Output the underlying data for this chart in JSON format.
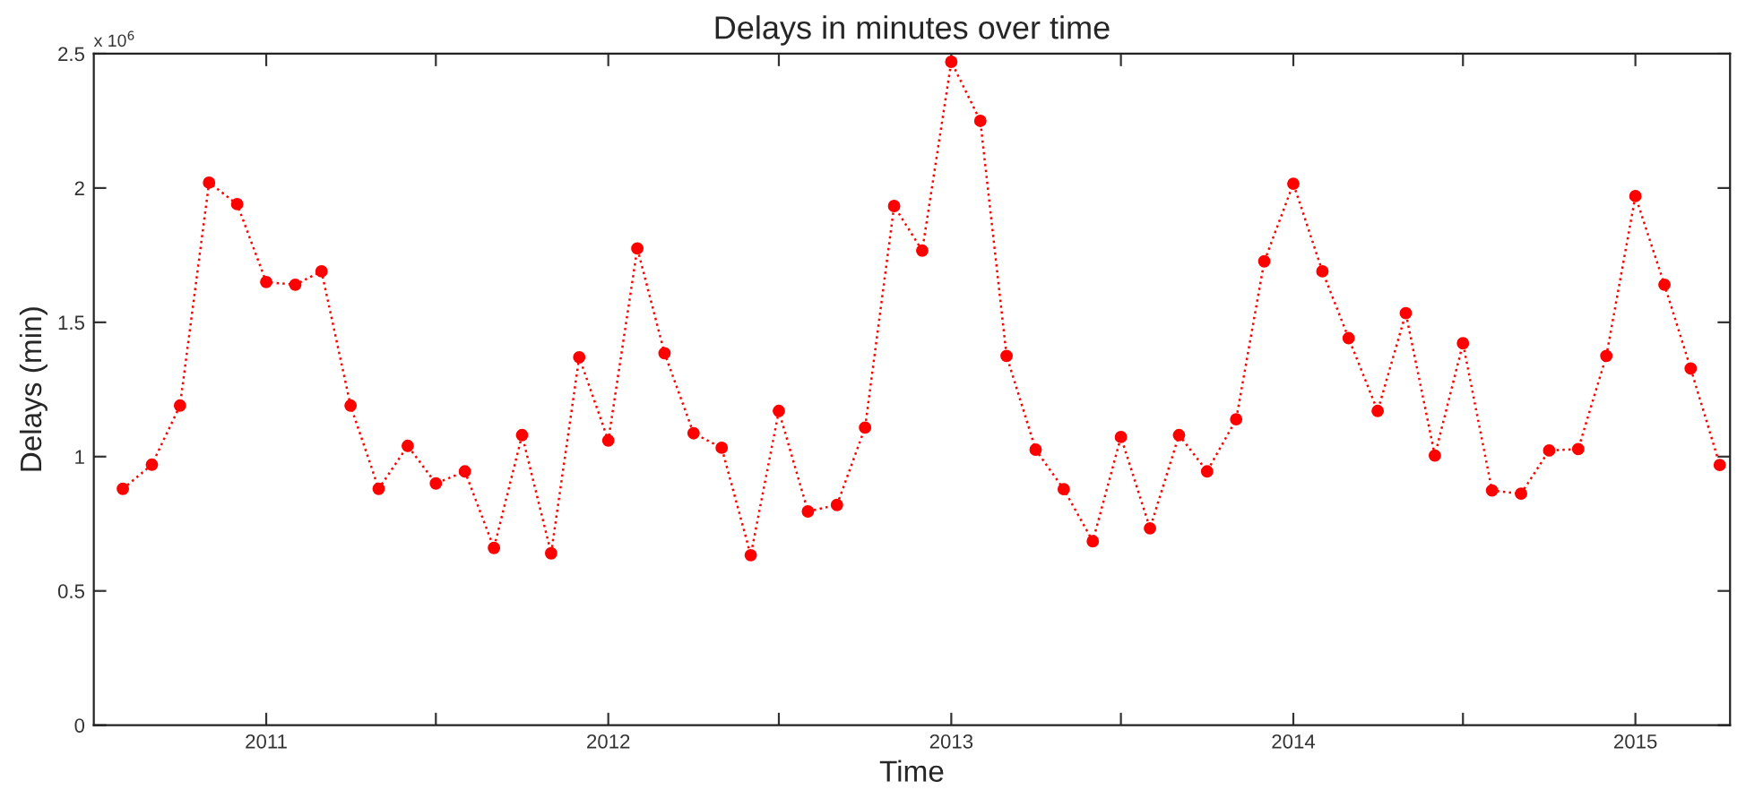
{
  "chart_data": {
    "type": "line",
    "title": "Delays in minutes over time",
    "xlabel": "Time",
    "ylabel": "Delays (min)",
    "annotations": [
      "x 10$^{6}$"
    ],
    "x": [
      "2010-08",
      "2010-09",
      "2010-10",
      "2010-11",
      "2010-12",
      "2011-01",
      "2011-02",
      "2011-03",
      "2011-04",
      "2011-05",
      "2011-06",
      "2011-07",
      "2011-08",
      "2011-09",
      "2011-10",
      "2011-11",
      "2011-12",
      "2012-01",
      "2012-02",
      "2012-03",
      "2012-04",
      "2012-05",
      "2012-06",
      "2012-07",
      "2012-08",
      "2012-09",
      "2012-10",
      "2012-11",
      "2012-12",
      "2013-01",
      "2013-02",
      "2013-03",
      "2013-04",
      "2013-05",
      "2013-06",
      "2013-07",
      "2013-08",
      "2013-09",
      "2013-10",
      "2013-11",
      "2013-12",
      "2014-01",
      "2014-02",
      "2014-03",
      "2014-04",
      "2014-05",
      "2014-06",
      "2014-07",
      "2014-08",
      "2014-09",
      "2014-10",
      "2014-11",
      "2014-12",
      "2015-01",
      "2015-02",
      "2015-03",
      "2015-04"
    ],
    "series": [
      {
        "color": "#ff0000",
        "values": [
          0.88,
          0.97,
          1.19,
          2.02,
          1.94,
          1.65,
          1.64,
          1.69,
          1.19,
          0.88,
          1.04,
          0.9,
          0.945,
          0.66,
          1.08,
          0.64,
          1.37,
          1.06,
          1.775,
          1.385,
          1.087,
          1.033,
          0.633,
          1.17,
          0.796,
          0.82,
          1.108,
          1.933,
          1.767,
          2.47,
          2.25,
          1.375,
          1.026,
          0.879,
          0.685,
          1.073,
          0.733,
          1.08,
          0.945,
          1.139,
          1.727,
          2.016,
          1.69,
          1.441,
          1.17,
          1.534,
          1.004,
          1.422,
          0.874,
          0.862,
          1.023,
          1.028,
          1.375,
          1.97,
          1.64,
          1.328,
          0.969
        ]
      }
    ],
    "xlim": [
      "2010-07-01",
      "2015-04-12"
    ],
    "xticks": [
      {
        "value": "2011-01",
        "label": "2011"
      },
      {
        "value": "2011-07",
        "label": null
      },
      {
        "value": "2012-01",
        "label": "2012"
      },
      {
        "value": "2012-07",
        "label": null
      },
      {
        "value": "2013-01",
        "label": "2013"
      },
      {
        "value": "2013-07",
        "label": null
      },
      {
        "value": "2014-01",
        "label": "2014"
      },
      {
        "value": "2014-07",
        "label": null
      },
      {
        "value": "2015-01",
        "label": "2015"
      }
    ],
    "ylim": [
      0,
      2.5
    ],
    "yticks": [
      0,
      0.5,
      1,
      1.5,
      2,
      2.5
    ],
    "grid": false,
    "marker": "circle",
    "line_style": "dotted"
  }
}
